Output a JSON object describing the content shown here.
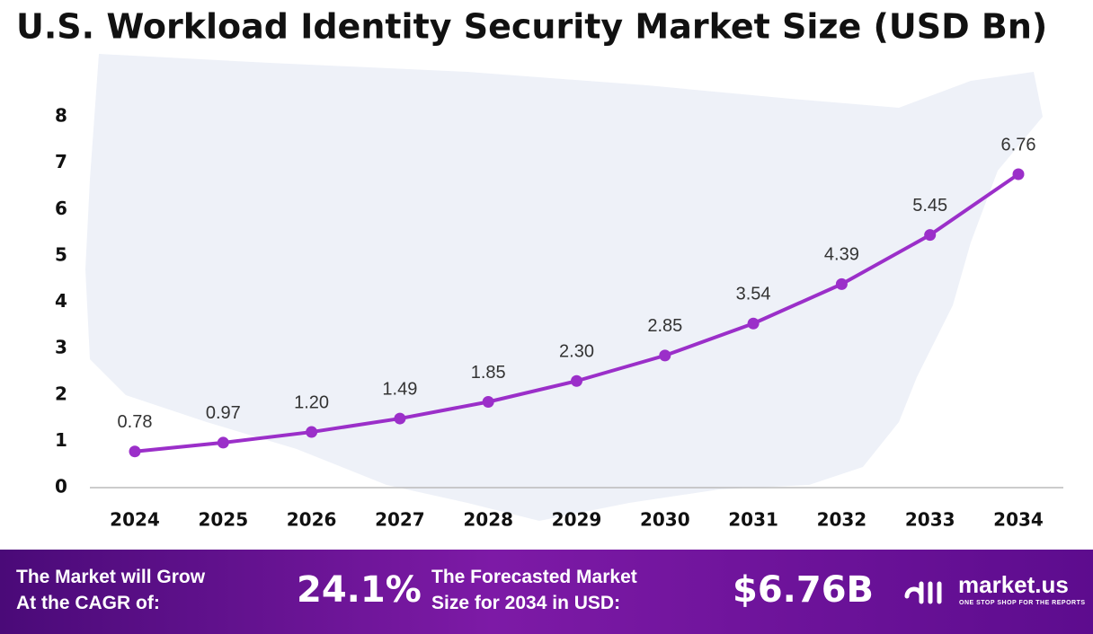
{
  "chart_data": {
    "type": "line",
    "title": "U.S. Workload Identity Security Market Size (USD Bn)",
    "categories": [
      "2024",
      "2025",
      "2026",
      "2027",
      "2028",
      "2029",
      "2030",
      "2031",
      "2032",
      "2033",
      "2034"
    ],
    "values": [
      0.78,
      0.97,
      1.2,
      1.49,
      1.85,
      2.3,
      2.85,
      3.54,
      4.39,
      5.45,
      6.76
    ],
    "value_labels": [
      "0.78",
      "0.97",
      "1.20",
      "1.49",
      "1.85",
      "2.30",
      "2.85",
      "3.54",
      "4.39",
      "5.45",
      "6.76"
    ],
    "color": "#9b2fc9",
    "ylim": [
      0,
      8
    ],
    "yticks": [
      0,
      1,
      2,
      3,
      4,
      5,
      6,
      7,
      8
    ],
    "grid": false
  },
  "footer": {
    "cagr_label": [
      "The Market will Grow",
      "At the CAGR of:"
    ],
    "cagr_value": "24.1%",
    "forecast_label": [
      "The Forecasted Market",
      "Size for 2034 in USD:"
    ],
    "forecast_value": "$6.76B",
    "brand": "market.us",
    "tagline": "ONE STOP SHOP FOR THE REPORTS"
  }
}
